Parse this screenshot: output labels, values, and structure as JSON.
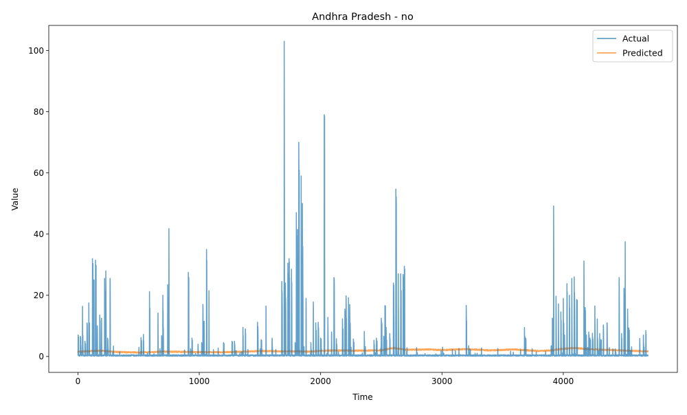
{
  "chart_data": {
    "type": "line",
    "title": "Andhra Pradesh - no",
    "xlabel": "Time",
    "ylabel": "Value",
    "xlim": [
      -240,
      4940
    ],
    "ylim": [
      -5.2,
      108.2
    ],
    "xticks": [
      0,
      1000,
      2000,
      3000,
      4000
    ],
    "yticks": [
      0,
      20,
      40,
      60,
      80,
      100
    ],
    "xtick_labels": [
      "0",
      "1000",
      "2000",
      "3000",
      "4000"
    ],
    "ytick_labels": [
      "0",
      "20",
      "40",
      "60",
      "80",
      "100"
    ],
    "grid": false,
    "legend_position": "top-right",
    "n_points": 4700,
    "series": [
      {
        "name": "Actual",
        "color": "#1f77b4",
        "baseline": 0.3,
        "spikes": [
          [
            2,
            7
          ],
          [
            20,
            6.6
          ],
          [
            38,
            16.4
          ],
          [
            58,
            5
          ],
          [
            75,
            11
          ],
          [
            90,
            17.5
          ],
          [
            120,
            32
          ],
          [
            130,
            25
          ],
          [
            145,
            31.5
          ],
          [
            160,
            10
          ],
          [
            180,
            13.5
          ],
          [
            195,
            12.5
          ],
          [
            220,
            25.5
          ],
          [
            230,
            28
          ],
          [
            245,
            6
          ],
          [
            265,
            25.5
          ],
          [
            520,
            6.2
          ],
          [
            540,
            7.2
          ],
          [
            590,
            21.2
          ],
          [
            660,
            14.2
          ],
          [
            690,
            6.8
          ],
          [
            700,
            20
          ],
          [
            740,
            23.5
          ],
          [
            750,
            41.8
          ],
          [
            910,
            27.5
          ],
          [
            940,
            6
          ],
          [
            990,
            4
          ],
          [
            1020,
            4.5
          ],
          [
            1030,
            17
          ],
          [
            1040,
            11.5
          ],
          [
            1060,
            35
          ],
          [
            1080,
            21.5
          ],
          [
            1200,
            4.5
          ],
          [
            1270,
            5
          ],
          [
            1290,
            5
          ],
          [
            1360,
            9.5
          ],
          [
            1380,
            9
          ],
          [
            1480,
            11.2
          ],
          [
            1510,
            5.5
          ],
          [
            1550,
            16.5
          ],
          [
            1600,
            6
          ],
          [
            1680,
            24.5
          ],
          [
            1700,
            103
          ],
          [
            1710,
            24
          ],
          [
            1730,
            30.5
          ],
          [
            1740,
            32
          ],
          [
            1760,
            28.5
          ],
          [
            1790,
            4.5
          ],
          [
            1800,
            47
          ],
          [
            1810,
            41.5
          ],
          [
            1820,
            70
          ],
          [
            1840,
            59
          ],
          [
            1850,
            50
          ],
          [
            1880,
            19
          ],
          [
            1920,
            4.5
          ],
          [
            1940,
            17.8
          ],
          [
            1960,
            11
          ],
          [
            1980,
            11.2
          ],
          [
            2000,
            6
          ],
          [
            2030,
            79
          ],
          [
            2060,
            12.8
          ],
          [
            2090,
            8
          ],
          [
            2110,
            25.8
          ],
          [
            2130,
            5.8
          ],
          [
            2180,
            12.3
          ],
          [
            2200,
            15.5
          ],
          [
            2210,
            19.8
          ],
          [
            2230,
            19.2
          ],
          [
            2240,
            17
          ],
          [
            2270,
            5.7
          ],
          [
            2360,
            8.2
          ],
          [
            2440,
            5.3
          ],
          [
            2460,
            6
          ],
          [
            2500,
            12.5
          ],
          [
            2520,
            6.6
          ],
          [
            2530,
            16.6
          ],
          [
            2540,
            9.5
          ],
          [
            2570,
            7.5
          ],
          [
            2600,
            24
          ],
          [
            2620,
            54.7
          ],
          [
            2640,
            27
          ],
          [
            2660,
            27
          ],
          [
            2680,
            26.8
          ],
          [
            2690,
            29.5
          ],
          [
            3200,
            16.7
          ],
          [
            3220,
            3.5
          ],
          [
            3680,
            9.5
          ],
          [
            3690,
            6
          ],
          [
            3900,
            3.5
          ],
          [
            3910,
            12.5
          ],
          [
            3920,
            49.2
          ],
          [
            3940,
            19.7
          ],
          [
            3960,
            17.2
          ],
          [
            3980,
            14.6
          ],
          [
            4000,
            19
          ],
          [
            4010,
            7
          ],
          [
            4030,
            23.8
          ],
          [
            4050,
            20
          ],
          [
            4070,
            25.5
          ],
          [
            4090,
            26
          ],
          [
            4110,
            18.6
          ],
          [
            4170,
            31.2
          ],
          [
            4180,
            16
          ],
          [
            4190,
            7
          ],
          [
            4210,
            8
          ],
          [
            4220,
            6
          ],
          [
            4240,
            7.6
          ],
          [
            4260,
            16.5
          ],
          [
            4280,
            12.3
          ],
          [
            4300,
            7.5
          ],
          [
            4310,
            5.5
          ],
          [
            4330,
            10.3
          ],
          [
            4360,
            11
          ],
          [
            4460,
            25.8
          ],
          [
            4480,
            7.5
          ],
          [
            4500,
            22.3
          ],
          [
            4510,
            37.5
          ],
          [
            4530,
            15.5
          ],
          [
            4540,
            9.3
          ],
          [
            4630,
            5.9
          ],
          [
            4660,
            7
          ],
          [
            4680,
            8.5
          ],
          [
            4700,
            14.5
          ],
          [
            4710,
            16.7
          ]
        ]
      },
      {
        "name": "Predicted",
        "color": "#ff7f0e",
        "profile": [
          [
            0,
            1.6
          ],
          [
            200,
            1.9
          ],
          [
            300,
            1.5
          ],
          [
            500,
            1.3
          ],
          [
            700,
            1.6
          ],
          [
            900,
            1.5
          ],
          [
            1100,
            1.4
          ],
          [
            1300,
            1.5
          ],
          [
            1500,
            1.8
          ],
          [
            1700,
            1.7
          ],
          [
            1900,
            1.6
          ],
          [
            2100,
            2.0
          ],
          [
            2300,
            1.9
          ],
          [
            2500,
            2.0
          ],
          [
            2600,
            2.8
          ],
          [
            2700,
            2.2
          ],
          [
            2900,
            2.3
          ],
          [
            3000,
            2.1
          ],
          [
            3200,
            2.4
          ],
          [
            3400,
            2.0
          ],
          [
            3600,
            2.3
          ],
          [
            3800,
            1.8
          ],
          [
            3900,
            2.0
          ],
          [
            4000,
            2.5
          ],
          [
            4100,
            2.8
          ],
          [
            4200,
            2.4
          ],
          [
            4400,
            2.1
          ],
          [
            4600,
            1.8
          ],
          [
            4710,
            1.7
          ]
        ]
      }
    ]
  }
}
